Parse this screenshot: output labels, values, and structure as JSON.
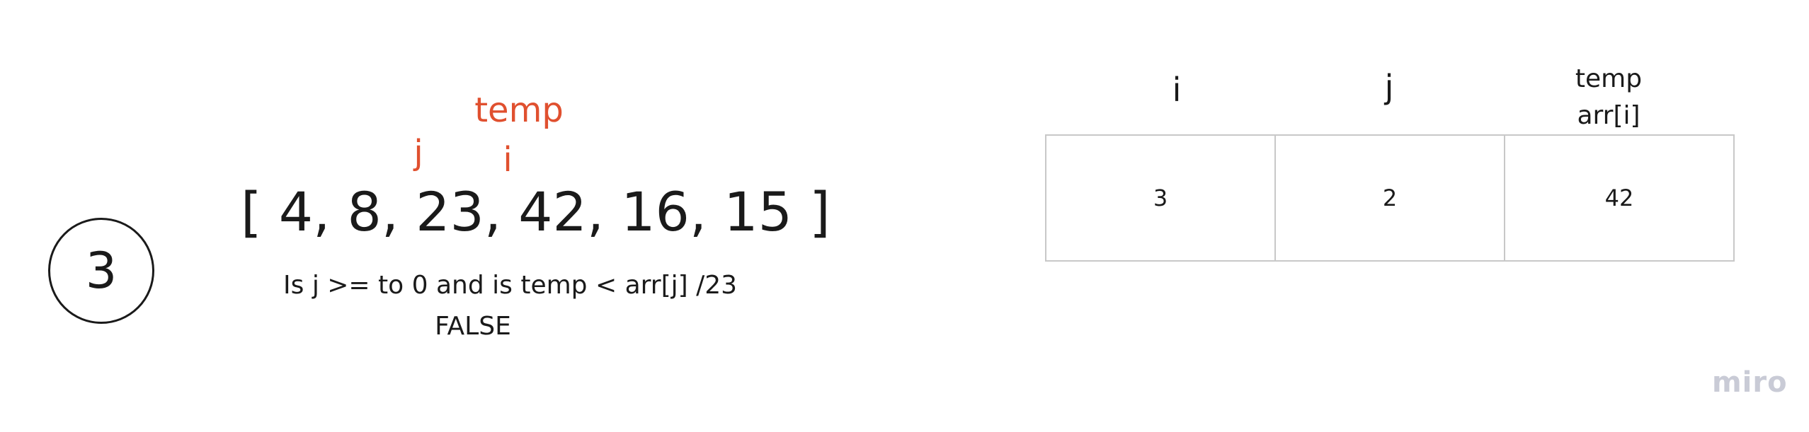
{
  "step": "3",
  "pointers": {
    "temp": "temp",
    "j": "j",
    "i": "i"
  },
  "array_text": "[ 4, 8, 23, 42, 16, 15 ]",
  "question": "Is j >= to 0 and is temp < arr[j] /23",
  "result": "FALSE",
  "table": {
    "headers": {
      "i": "i",
      "j": "j",
      "temp_line1": "temp",
      "temp_line2": "arr[i]"
    },
    "values": [
      "3",
      "2",
      "42"
    ]
  },
  "watermark": "miro",
  "colors": {
    "pointer": "#e0502f",
    "border": "#c8c8c8",
    "watermark": "#c9cbd6"
  }
}
